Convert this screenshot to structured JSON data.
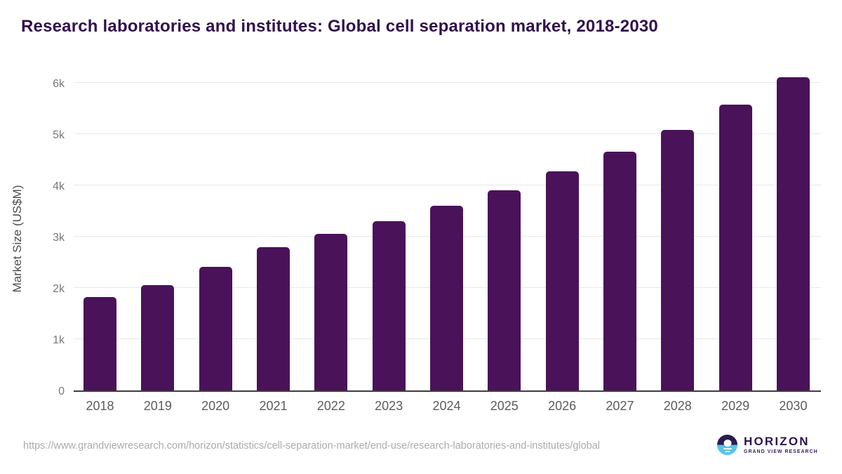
{
  "title": "Research laboratories and institutes: Global cell separation market, 2018-2030",
  "chart_data": {
    "type": "bar",
    "title": "Research laboratories and institutes: Global cell separation market, 2018-2030",
    "categories": [
      "2018",
      "2019",
      "2020",
      "2021",
      "2022",
      "2023",
      "2024",
      "2025",
      "2026",
      "2027",
      "2028",
      "2029",
      "2030"
    ],
    "values": [
      1820,
      2050,
      2410,
      2790,
      3050,
      3300,
      3600,
      3910,
      4280,
      4660,
      5080,
      5570,
      6110
    ],
    "xlabel": "",
    "ylabel": "Market Size (US$M)",
    "ylim": [
      0,
      6000
    ],
    "yticks": [
      {
        "value": 0,
        "label": "0"
      },
      {
        "value": 1000,
        "label": "1k"
      },
      {
        "value": 2000,
        "label": "2k"
      },
      {
        "value": 3000,
        "label": "3k"
      },
      {
        "value": 4000,
        "label": "4k"
      },
      {
        "value": 5000,
        "label": "5k"
      },
      {
        "value": 6000,
        "label": "6k"
      }
    ],
    "grid": true,
    "legend": false,
    "bar_color": "#4a1259"
  },
  "colors": {
    "title_text": "#31114c",
    "bar": "#4a1259",
    "gridline": "#e8e8e8",
    "axis_line": "#3d3d3d",
    "tick_text": "#787878",
    "logo_purple": "#2b1b4b",
    "logo_blue": "#57c4ea"
  },
  "footer": {
    "source_url": "https://www.grandviewresearch.com/horizon/statistics/cell-separation-market/end-use/research-laboratories-and-institutes/global",
    "logo_title": "HORIZON",
    "logo_subtitle": "GRAND VIEW RESEARCH"
  }
}
